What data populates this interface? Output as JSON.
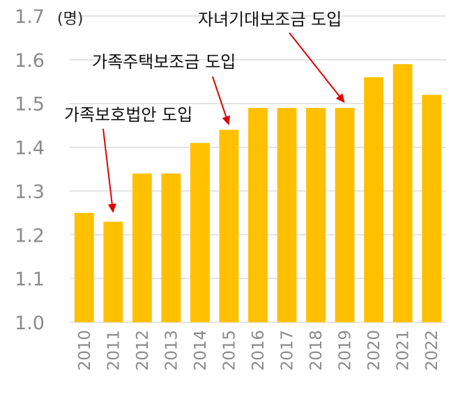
{
  "chart_data": {
    "type": "bar",
    "unit_label": "(명)",
    "categories": [
      "2010",
      "2011",
      "2012",
      "2013",
      "2014",
      "2015",
      "2016",
      "2017",
      "2018",
      "2019",
      "2020",
      "2021",
      "2022"
    ],
    "values": [
      1.25,
      1.23,
      1.34,
      1.34,
      1.41,
      1.44,
      1.49,
      1.49,
      1.49,
      1.49,
      1.56,
      1.59,
      1.52
    ],
    "ylim": [
      1.0,
      1.7
    ],
    "yticks": [
      "1.0",
      "1.1",
      "1.2",
      "1.3",
      "1.4",
      "1.5",
      "1.6",
      "1.7"
    ],
    "grid": true,
    "bar_color": "#FFC000",
    "annotations": [
      {
        "text": "가족보호법안 도입",
        "category": "2011"
      },
      {
        "text": "가족주택보조금 도입",
        "category": "2015"
      },
      {
        "text": "자녀기대보조금 도입",
        "category": "2019"
      }
    ],
    "annotation_arrow_color": "#E00000"
  }
}
